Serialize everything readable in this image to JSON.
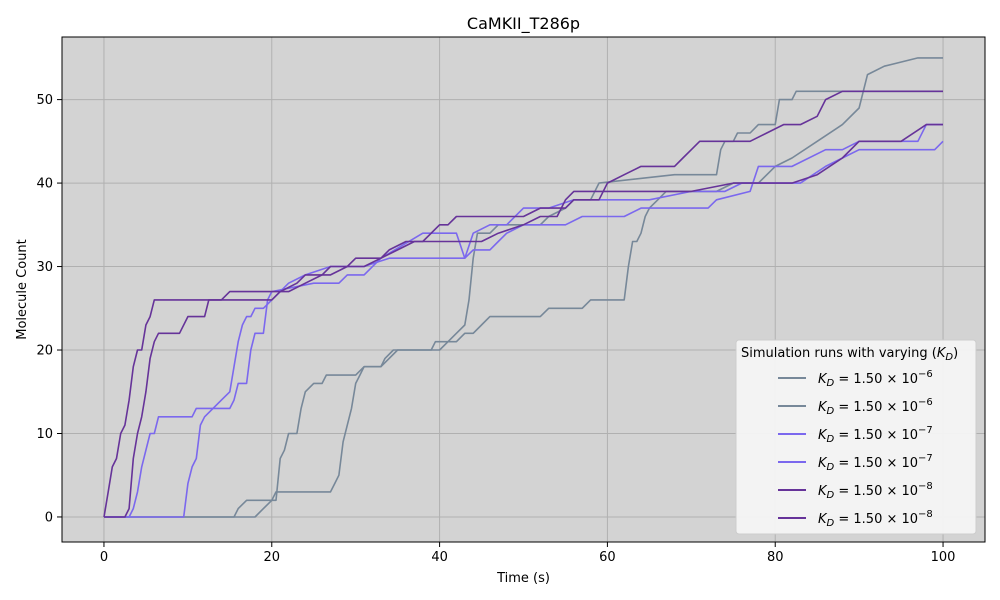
{
  "chart_data": {
    "type": "line",
    "title": "CaMKII_T286p",
    "xlabel": "Time (s)",
    "ylabel": "Molecule Count",
    "xlim": [
      -5,
      105
    ],
    "ylim": [
      -3,
      57.5
    ],
    "xticks": [
      0,
      20,
      40,
      60,
      80,
      100
    ],
    "yticks": [
      0,
      10,
      20,
      30,
      40,
      50
    ],
    "grid": true,
    "plot_background": "#d3d3d3",
    "grid_color": "#b0b0b0",
    "legend": {
      "title": "Simulation runs with varying (K_D)",
      "placement": "lower-right"
    },
    "series": [
      {
        "name": "K_D = 1.50 × 10^-6",
        "label": {
          "base": "1.50",
          "exp": "−6"
        },
        "color": "#778899",
        "points": [
          [
            0,
            0
          ],
          [
            15.5,
            0
          ],
          [
            16,
            1
          ],
          [
            17,
            2
          ],
          [
            19,
            2
          ],
          [
            20,
            2
          ],
          [
            20.5,
            3
          ],
          [
            27,
            3
          ],
          [
            27.5,
            4
          ],
          [
            28,
            5
          ],
          [
            28.5,
            9
          ],
          [
            29,
            11
          ],
          [
            29.5,
            13
          ],
          [
            30,
            16
          ],
          [
            30.5,
            17
          ],
          [
            31,
            18
          ],
          [
            33,
            18
          ],
          [
            33.5,
            19
          ],
          [
            34.5,
            20
          ],
          [
            39,
            20
          ],
          [
            39.5,
            21
          ],
          [
            41,
            21
          ],
          [
            42,
            22
          ],
          [
            43,
            23
          ],
          [
            43.5,
            26
          ],
          [
            44,
            31
          ],
          [
            44.5,
            34
          ],
          [
            46,
            34
          ],
          [
            47,
            35
          ],
          [
            50,
            35
          ],
          [
            52,
            35
          ],
          [
            53,
            36
          ],
          [
            55,
            37
          ],
          [
            56,
            38
          ],
          [
            58,
            38
          ],
          [
            59,
            40
          ],
          [
            68,
            41
          ],
          [
            73,
            41
          ],
          [
            73.5,
            44
          ],
          [
            74,
            45
          ],
          [
            75,
            45
          ],
          [
            75.5,
            46
          ],
          [
            77,
            46
          ],
          [
            78,
            47
          ],
          [
            80,
            47
          ],
          [
            80.5,
            50
          ],
          [
            82,
            50
          ],
          [
            82.5,
            51
          ],
          [
            96,
            51
          ],
          [
            96.5,
            51
          ],
          [
            100,
            51
          ]
        ]
      },
      {
        "name": "K_D = 1.50 × 10^-6",
        "label": {
          "base": "1.50",
          "exp": "−6"
        },
        "color": "#778899",
        "points": [
          [
            0,
            0
          ],
          [
            18,
            0
          ],
          [
            19,
            1
          ],
          [
            20,
            2
          ],
          [
            20.5,
            2
          ],
          [
            21,
            7
          ],
          [
            21.5,
            8
          ],
          [
            22,
            10
          ],
          [
            23,
            10
          ],
          [
            23.5,
            13
          ],
          [
            24,
            15
          ],
          [
            25,
            16
          ],
          [
            26,
            16
          ],
          [
            26.5,
            17
          ],
          [
            30,
            17
          ],
          [
            31,
            18
          ],
          [
            33,
            18
          ],
          [
            35,
            20
          ],
          [
            40,
            20
          ],
          [
            41,
            21
          ],
          [
            42,
            21
          ],
          [
            43,
            22
          ],
          [
            44,
            22
          ],
          [
            45,
            23
          ],
          [
            46,
            24
          ],
          [
            52,
            24
          ],
          [
            53,
            25
          ],
          [
            57,
            25
          ],
          [
            58,
            26
          ],
          [
            62,
            26
          ],
          [
            62.5,
            30
          ],
          [
            63,
            33
          ],
          [
            63.5,
            33
          ],
          [
            64,
            34
          ],
          [
            64.5,
            36
          ],
          [
            65,
            37
          ],
          [
            66,
            38
          ],
          [
            67,
            39
          ],
          [
            73,
            39
          ],
          [
            75,
            40
          ],
          [
            78,
            40
          ],
          [
            80,
            42
          ],
          [
            82,
            43
          ],
          [
            85,
            45
          ],
          [
            88,
            47
          ],
          [
            90,
            49
          ],
          [
            91,
            53
          ],
          [
            93,
            54
          ],
          [
            97,
            55
          ],
          [
            100,
            55
          ]
        ]
      },
      {
        "name": "K_D = 1.50 × 10^-7",
        "label": {
          "base": "1.50",
          "exp": "−7"
        },
        "color": "#7B68EE",
        "points": [
          [
            0,
            0
          ],
          [
            3,
            0
          ],
          [
            3.5,
            1
          ],
          [
            4,
            3
          ],
          [
            4.5,
            6
          ],
          [
            5,
            8
          ],
          [
            5.5,
            10
          ],
          [
            6,
            10
          ],
          [
            6.5,
            12
          ],
          [
            10.5,
            12
          ],
          [
            11,
            13
          ],
          [
            15,
            13
          ],
          [
            15.5,
            14
          ],
          [
            16,
            16
          ],
          [
            17,
            16
          ],
          [
            17.5,
            20
          ],
          [
            18,
            22
          ],
          [
            19,
            22
          ],
          [
            19.5,
            26
          ],
          [
            20,
            27
          ],
          [
            25,
            28
          ],
          [
            28,
            28
          ],
          [
            29,
            29
          ],
          [
            31,
            29
          ],
          [
            33,
            31
          ],
          [
            38,
            34
          ],
          [
            42,
            34
          ],
          [
            43,
            31
          ],
          [
            44,
            32
          ],
          [
            46,
            32
          ],
          [
            47,
            33
          ],
          [
            48,
            34
          ],
          [
            50,
            35
          ],
          [
            55,
            35
          ],
          [
            57,
            36
          ],
          [
            62,
            36
          ],
          [
            64,
            37
          ],
          [
            70,
            37
          ],
          [
            72,
            37
          ],
          [
            73,
            38
          ],
          [
            77,
            39
          ],
          [
            78,
            42
          ],
          [
            82,
            42
          ],
          [
            86,
            44
          ],
          [
            88,
            44
          ],
          [
            90,
            45
          ],
          [
            97,
            45
          ],
          [
            98,
            47
          ],
          [
            100,
            47
          ]
        ]
      },
      {
        "name": "K_D = 1.50 × 10^-7",
        "label": {
          "base": "1.50",
          "exp": "−7"
        },
        "color": "#7B68EE",
        "points": [
          [
            0,
            0
          ],
          [
            9.5,
            0
          ],
          [
            10,
            4
          ],
          [
            10.5,
            6
          ],
          [
            11,
            7
          ],
          [
            11.5,
            11
          ],
          [
            12,
            12
          ],
          [
            13,
            13
          ],
          [
            14,
            14
          ],
          [
            15,
            15
          ],
          [
            15.5,
            18
          ],
          [
            16,
            21
          ],
          [
            16.5,
            23
          ],
          [
            17,
            24
          ],
          [
            17.5,
            24
          ],
          [
            18,
            25
          ],
          [
            19,
            25
          ],
          [
            20,
            26
          ],
          [
            21,
            27
          ],
          [
            22,
            28
          ],
          [
            24,
            29
          ],
          [
            27,
            30
          ],
          [
            29,
            30
          ],
          [
            31,
            30
          ],
          [
            34,
            31
          ],
          [
            38,
            31
          ],
          [
            43,
            31
          ],
          [
            44,
            34
          ],
          [
            46,
            35
          ],
          [
            48,
            35
          ],
          [
            50,
            37
          ],
          [
            53,
            37
          ],
          [
            56,
            38
          ],
          [
            58,
            38
          ],
          [
            60,
            38
          ],
          [
            62,
            38
          ],
          [
            65,
            38
          ],
          [
            70,
            39
          ],
          [
            74,
            39
          ],
          [
            76,
            40
          ],
          [
            80,
            40
          ],
          [
            83,
            40
          ],
          [
            86,
            42
          ],
          [
            88,
            43
          ],
          [
            90,
            44
          ],
          [
            96,
            44
          ],
          [
            99,
            44
          ],
          [
            100,
            45
          ]
        ]
      },
      {
        "name": "K_D = 1.50 × 10^-8",
        "label": {
          "base": "1.50",
          "exp": "−8"
        },
        "color": "#663399",
        "points": [
          [
            0,
            0
          ],
          [
            0.5,
            3
          ],
          [
            1,
            6
          ],
          [
            1.5,
            7
          ],
          [
            2,
            10
          ],
          [
            2.5,
            11
          ],
          [
            3,
            14
          ],
          [
            3.5,
            18
          ],
          [
            4,
            20
          ],
          [
            4.5,
            20
          ],
          [
            5,
            23
          ],
          [
            5.5,
            24
          ],
          [
            6,
            26
          ],
          [
            12,
            26
          ],
          [
            13,
            26
          ],
          [
            15,
            26
          ],
          [
            20,
            26
          ],
          [
            21,
            27
          ],
          [
            23,
            28
          ],
          [
            24,
            29
          ],
          [
            26,
            29
          ],
          [
            27,
            30
          ],
          [
            29,
            30
          ],
          [
            30,
            31
          ],
          [
            33,
            31
          ],
          [
            34,
            32
          ],
          [
            36,
            33
          ],
          [
            38,
            33
          ],
          [
            40,
            35
          ],
          [
            41,
            35
          ],
          [
            42,
            36
          ],
          [
            47,
            36
          ],
          [
            50,
            36
          ],
          [
            52,
            37
          ],
          [
            55,
            37
          ],
          [
            56,
            38
          ],
          [
            59,
            38
          ],
          [
            60,
            40
          ],
          [
            62,
            41
          ],
          [
            64,
            42
          ],
          [
            68,
            42
          ],
          [
            69,
            43
          ],
          [
            70,
            44
          ],
          [
            71,
            45
          ],
          [
            75,
            45
          ],
          [
            77,
            45
          ],
          [
            79,
            46
          ],
          [
            81,
            47
          ],
          [
            83,
            47
          ],
          [
            85,
            48
          ],
          [
            86,
            50
          ],
          [
            88,
            51
          ],
          [
            95,
            51
          ],
          [
            100,
            51
          ]
        ]
      },
      {
        "name": "K_D = 1.50 × 10^-8",
        "label": {
          "base": "1.50",
          "exp": "−8"
        },
        "color": "#663399",
        "points": [
          [
            0,
            0
          ],
          [
            2.5,
            0
          ],
          [
            3,
            1
          ],
          [
            3.5,
            7
          ],
          [
            4,
            10
          ],
          [
            4.5,
            12
          ],
          [
            5,
            15
          ],
          [
            5.5,
            19
          ],
          [
            6,
            21
          ],
          [
            6.5,
            22
          ],
          [
            9,
            22
          ],
          [
            10,
            24
          ],
          [
            12,
            24
          ],
          [
            12.5,
            26
          ],
          [
            14,
            26
          ],
          [
            15,
            27
          ],
          [
            19,
            27
          ],
          [
            21,
            27
          ],
          [
            22,
            27
          ],
          [
            24,
            28
          ],
          [
            26,
            29
          ],
          [
            27,
            29
          ],
          [
            29,
            30
          ],
          [
            31,
            30
          ],
          [
            33,
            31
          ],
          [
            35,
            32
          ],
          [
            37,
            33
          ],
          [
            39,
            33
          ],
          [
            43,
            33
          ],
          [
            45,
            33
          ],
          [
            47,
            34
          ],
          [
            50,
            35
          ],
          [
            52,
            36
          ],
          [
            54,
            36
          ],
          [
            55,
            38
          ],
          [
            56,
            39
          ],
          [
            60,
            39
          ],
          [
            65,
            39
          ],
          [
            70,
            39
          ],
          [
            75,
            40
          ],
          [
            78,
            40
          ],
          [
            82,
            40
          ],
          [
            85,
            41
          ],
          [
            88,
            43
          ],
          [
            90,
            45
          ],
          [
            95,
            45
          ],
          [
            98,
            47
          ],
          [
            100,
            47
          ]
        ]
      }
    ]
  }
}
